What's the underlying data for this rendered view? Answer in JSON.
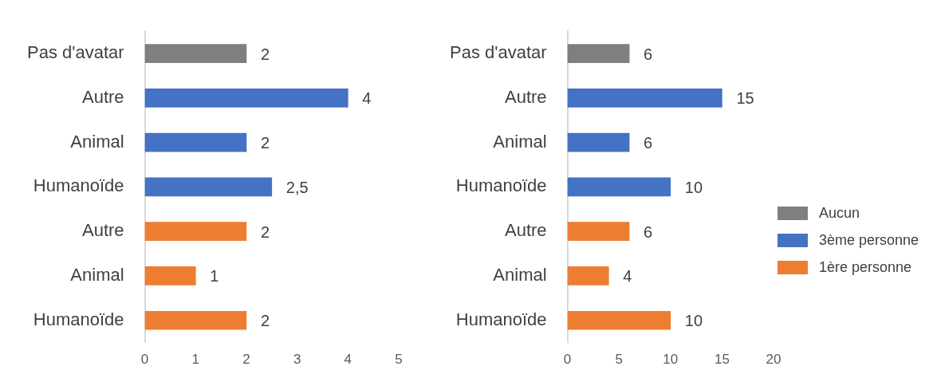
{
  "chart_data": [
    {
      "type": "bar",
      "orientation": "horizontal",
      "categories": [
        "Pas d'avatar",
        "Autre",
        "Animal",
        "Humanoïde",
        "Autre",
        "Animal",
        "Humanoïde"
      ],
      "values": [
        2,
        4,
        2,
        2.5,
        2,
        1,
        2
      ],
      "colors": [
        "#7f7f7f",
        "#4472c4",
        "#4472c4",
        "#4472c4",
        "#ed7d31",
        "#ed7d31",
        "#ed7d31"
      ],
      "value_labels": [
        "2",
        "4",
        "2",
        "2,5",
        "2",
        "1",
        "2"
      ],
      "xlim": [
        0,
        5
      ],
      "xticks": [
        0,
        1,
        2,
        3,
        4,
        5
      ],
      "grid": false,
      "legend": false
    },
    {
      "type": "bar",
      "orientation": "horizontal",
      "categories": [
        "Pas d'avatar",
        "Autre",
        "Animal",
        "Humanoïde",
        "Autre",
        "Animal",
        "Humanoïde"
      ],
      "series": [
        {
          "name": "Aucun",
          "color": "#7f7f7f",
          "values": [
            6,
            null,
            null,
            null,
            null,
            null,
            null
          ]
        },
        {
          "name": "3ème personne",
          "color": "#4472c4",
          "values": [
            null,
            15,
            6,
            10,
            null,
            null,
            null
          ]
        },
        {
          "name": "1ère personne",
          "color": "#ed7d31",
          "values": [
            null,
            null,
            null,
            null,
            6,
            4,
            10
          ]
        }
      ],
      "data_labels": true,
      "xlim": [
        0,
        20
      ],
      "xticks": [
        0,
        5,
        10,
        15,
        20
      ],
      "grid": false,
      "legend": "right"
    }
  ]
}
